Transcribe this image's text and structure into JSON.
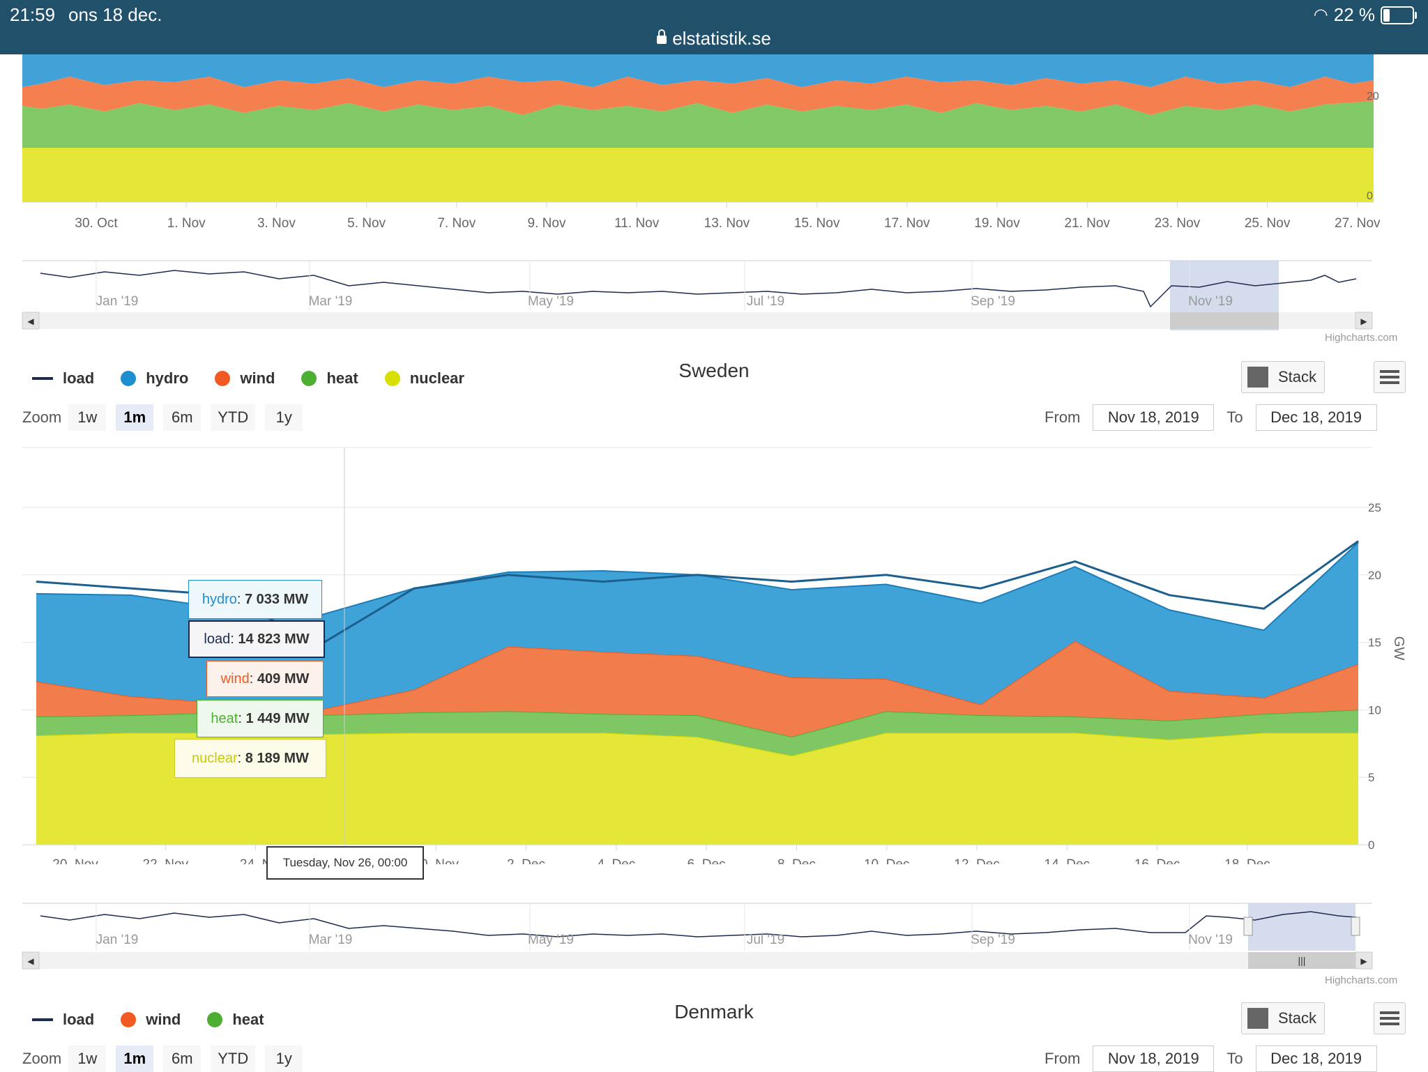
{
  "status": {
    "time": "21:59",
    "date": "ons 18 dec.",
    "url": "elstatistik.se",
    "battery": "22 %",
    "wifi_icon": "wifi-icon",
    "battery_icon": "battery-icon"
  },
  "top_chart": {
    "y_ticks": [
      "0",
      "20"
    ],
    "x_ticks": [
      "30. Oct",
      "1. Nov",
      "3. Nov",
      "5. Nov",
      "7. Nov",
      "9. Nov",
      "11. Nov",
      "13. Nov",
      "15. Nov",
      "17. Nov",
      "19. Nov",
      "21. Nov",
      "23. Nov",
      "25. Nov",
      "27. Nov"
    ],
    "navigator_labels": [
      "Jan '19",
      "Mar '19",
      "May '19",
      "Jul '19",
      "Sep '19",
      "Nov '19"
    ],
    "credit": "Highcharts.com"
  },
  "sweden": {
    "title": "Sweden",
    "legend": [
      {
        "name": "load",
        "color": "#1c2a4f",
        "kind": "line"
      },
      {
        "name": "hydro",
        "color": "#1d8fce",
        "kind": "dot"
      },
      {
        "name": "wind",
        "color": "#f15a22",
        "kind": "dot"
      },
      {
        "name": "heat",
        "color": "#4caf32",
        "kind": "dot"
      },
      {
        "name": "nuclear",
        "color": "#d8e000",
        "kind": "dot"
      }
    ],
    "stack_label": "Stack",
    "zoom_label": "Zoom",
    "zoom_buttons": [
      "1w",
      "1m",
      "6m",
      "YTD",
      "1y"
    ],
    "zoom_active": "1m",
    "from_label": "From",
    "from_value": "Nov 18, 2019",
    "to_label": "To",
    "to_value": "Dec 18, 2019",
    "y_axis_title": "GW",
    "y_ticks": [
      "0",
      "5",
      "10",
      "15",
      "20",
      "25"
    ],
    "x_ticks": [
      "20. Nov",
      "22. Nov",
      "24. N",
      "28. Nov",
      "30. Nov",
      "2. Dec",
      "4. Dec",
      "6. Dec",
      "8. Dec",
      "10. Dec",
      "12. Dec",
      "14. Dec",
      "16. Dec",
      "18. Dec"
    ],
    "tooltip": {
      "hydro_name": "hydro",
      "hydro_value": "7 033 MW",
      "load_name": "load",
      "load_value": "14 823 MW",
      "wind_name": "wind",
      "wind_value": "409 MW",
      "heat_name": "heat",
      "heat_value": "1 449 MW",
      "nuclear_name": "nuclear",
      "nuclear_value": "8 189 MW",
      "date": "Tuesday, Nov 26, 00:00"
    },
    "navigator_labels": [
      "Jan '19",
      "Mar '19",
      "May '19",
      "Jul '19",
      "Sep '19",
      "Nov '19"
    ],
    "credit": "Highcharts.com"
  },
  "denmark": {
    "title": "Denmark",
    "legend": [
      {
        "name": "load",
        "color": "#1c2a4f",
        "kind": "line"
      },
      {
        "name": "wind",
        "color": "#f15a22",
        "kind": "dot"
      },
      {
        "name": "heat",
        "color": "#4caf32",
        "kind": "dot"
      }
    ],
    "stack_label": "Stack",
    "zoom_label": "Zoom",
    "zoom_buttons": [
      "1w",
      "1m",
      "6m",
      "YTD",
      "1y"
    ],
    "zoom_active": "1m",
    "from_label": "From",
    "from_value": "Nov 18, 2019",
    "to_label": "To",
    "to_value": "Dec 18, 2019"
  },
  "chart_data": [
    {
      "type": "area",
      "title": "Sweden",
      "ylabel": "GW",
      "ylim": [
        0,
        25
      ],
      "stacked": true,
      "x": [
        "2019-11-20",
        "2019-11-22",
        "2019-11-24",
        "2019-11-26",
        "2019-11-28",
        "2019-11-30",
        "2019-12-02",
        "2019-12-04",
        "2019-12-06",
        "2019-12-08",
        "2019-12-10",
        "2019-12-12",
        "2019-12-14",
        "2019-12-16",
        "2019-12-18"
      ],
      "series": [
        {
          "name": "nuclear",
          "values": [
            8.1,
            8.3,
            8.3,
            8.2,
            8.3,
            8.3,
            8.3,
            8.0,
            6.6,
            8.3,
            8.3,
            8.3,
            7.8,
            8.3,
            8.3
          ]
        },
        {
          "name": "heat",
          "values": [
            1.4,
            1.3,
            1.5,
            1.4,
            1.5,
            1.6,
            1.4,
            1.6,
            1.4,
            1.6,
            1.3,
            1.2,
            1.4,
            1.4,
            1.7
          ]
        },
        {
          "name": "wind",
          "values": [
            2.6,
            1.4,
            0.7,
            0.4,
            1.7,
            4.8,
            4.6,
            4.4,
            4.4,
            2.4,
            0.8,
            5.6,
            2.2,
            1.2,
            3.4
          ]
        },
        {
          "name": "hydro",
          "values": [
            6.5,
            7.5,
            7.0,
            7.0,
            7.5,
            5.5,
            6.0,
            6.0,
            6.5,
            7.0,
            7.5,
            5.5,
            6.0,
            5.0,
            9.0
          ]
        }
      ],
      "load": {
        "name": "load",
        "values": [
          19.5,
          19.0,
          18.5,
          14.8,
          19.0,
          20.0,
          19.5,
          20.0,
          19.5,
          20.0,
          19.0,
          21.0,
          18.5,
          17.5,
          22.5
        ]
      }
    }
  ]
}
